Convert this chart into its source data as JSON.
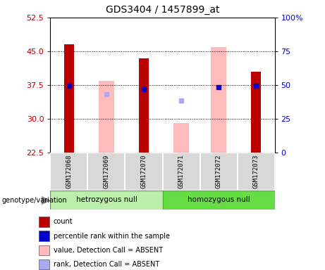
{
  "title": "GDS3404 / 1457899_at",
  "samples": [
    "GSM172068",
    "GSM172069",
    "GSM172070",
    "GSM172071",
    "GSM172072",
    "GSM172073"
  ],
  "group_labels": [
    "hetrozygous null",
    "homozygous null"
  ],
  "group_colors": [
    "#bbeeaa",
    "#66dd44"
  ],
  "ylim_left": [
    22.5,
    52.5
  ],
  "ylim_right": [
    0,
    100
  ],
  "yticks_left": [
    22.5,
    30.0,
    37.5,
    45.0,
    52.5
  ],
  "yticks_right": [
    0,
    25,
    50,
    75,
    100
  ],
  "ytick_labels_right": [
    "0",
    "25",
    "50",
    "75",
    "100%"
  ],
  "red_bars": [
    46.5,
    null,
    43.5,
    null,
    null,
    40.5
  ],
  "pink_bars": [
    null,
    38.5,
    null,
    29.0,
    46.0,
    null
  ],
  "blue_markers": [
    37.3,
    null,
    36.5,
    null,
    37.0,
    37.3
  ],
  "light_blue_markers": [
    null,
    35.5,
    null,
    34.0,
    null,
    null
  ],
  "bar_bottom": 22.5,
  "red_color": "#bb0000",
  "pink_color": "#ffbbbb",
  "blue_color": "#0000cc",
  "light_blue_color": "#aaaaee",
  "legend_items": [
    {
      "color": "#bb0000",
      "label": "count"
    },
    {
      "color": "#0000cc",
      "label": "percentile rank within the sample"
    },
    {
      "color": "#ffbbbb",
      "label": "value, Detection Call = ABSENT"
    },
    {
      "color": "#aaaaee",
      "label": "rank, Detection Call = ABSENT"
    }
  ]
}
